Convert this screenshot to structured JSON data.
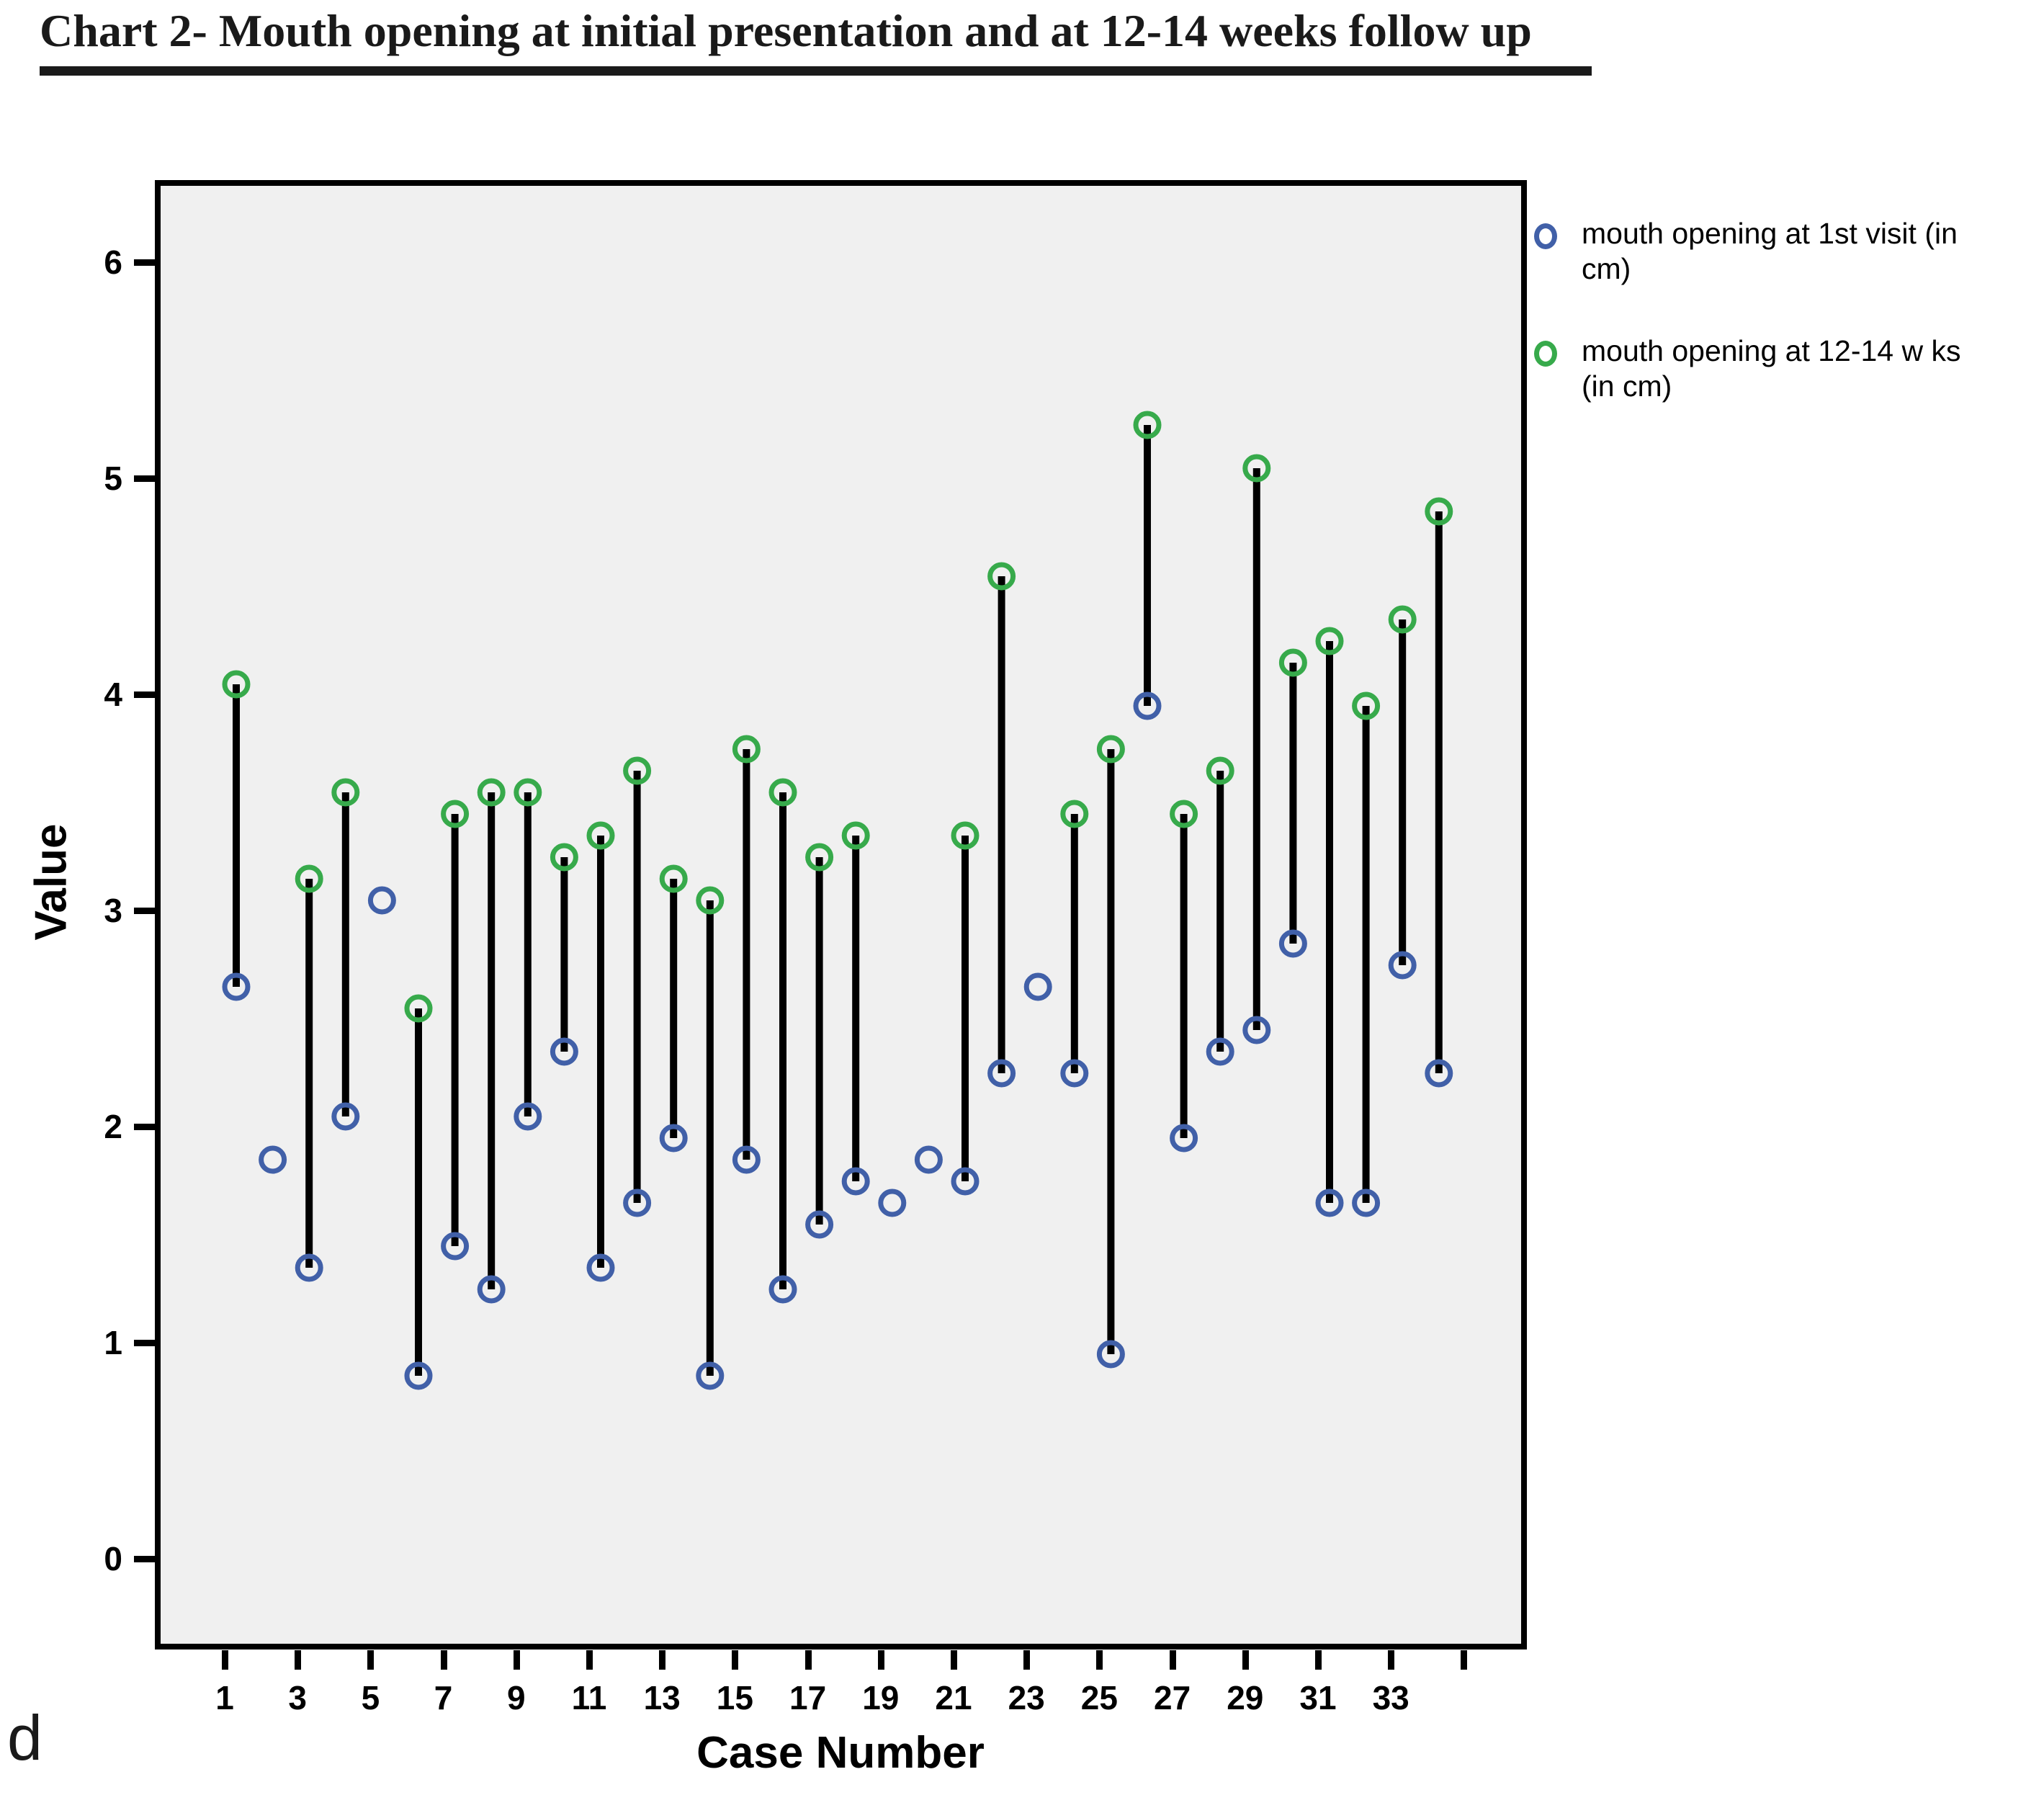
{
  "title": "Chart 2- Mouth opening at initial presentation and at 12-14 weeks follow up",
  "footnote": "d",
  "axes": {
    "y_label": "Value",
    "x_label": "Case Number",
    "y_ticks": [
      "0",
      "1",
      "2",
      "3",
      "4",
      "5",
      "6"
    ],
    "x_tick_labels": [
      "1",
      "3",
      "5",
      "7",
      "9",
      "11",
      "13",
      "15",
      "17",
      "19",
      "21",
      "23",
      "25",
      "27",
      "29",
      "31",
      "33"
    ],
    "x_tick_cases": [
      1,
      3,
      5,
      7,
      9,
      11,
      13,
      15,
      17,
      19,
      21,
      23,
      25,
      27,
      29,
      31,
      33
    ],
    "extra_unlabeled_tick_case": 35
  },
  "legend": {
    "items": [
      {
        "series": "first_visit",
        "color": "#4160A8",
        "lines": [
          "mouth opening at 1st visit (in",
          "cm)"
        ]
      },
      {
        "series": "followup",
        "color": "#37AA4B",
        "lines": [
          "mouth opening at 12-14 w ks",
          "(in cm)"
        ]
      }
    ]
  },
  "colors": {
    "first_visit": "#4160A8",
    "followup": "#37AA4B",
    "plot_bg": "#F0F0F0",
    "connector": "#000000"
  },
  "chart_data": {
    "type": "scatter",
    "subtype": "drop-line-pairs",
    "title": "Chart 2- Mouth opening at initial presentation and at 12-14 weeks follow up",
    "xlabel": "Case Number",
    "ylabel": "Value",
    "x": [
      1,
      2,
      3,
      4,
      5,
      6,
      7,
      8,
      9,
      10,
      11,
      12,
      13,
      14,
      15,
      16,
      17,
      18,
      19,
      20,
      21,
      22,
      23,
      24,
      25,
      26,
      27,
      28,
      29,
      30,
      31,
      32,
      33,
      34
    ],
    "series": [
      {
        "name": "mouth opening at 1st visit (in cm)",
        "marker": "open-circle",
        "color": "#4160A8",
        "values": [
          2.7,
          1.9,
          1.4,
          2.1,
          3.1,
          0.9,
          1.5,
          1.3,
          2.1,
          2.4,
          1.4,
          1.7,
          2.0,
          0.9,
          1.9,
          1.3,
          1.6,
          1.8,
          1.7,
          1.9,
          1.8,
          2.3,
          2.7,
          2.3,
          1.0,
          4.0,
          2.0,
          2.4,
          2.5,
          2.9,
          1.7,
          1.7,
          2.8,
          2.3
        ]
      },
      {
        "name": "mouth opening at 12-14 w ks (in cm)",
        "marker": "open-circle",
        "color": "#37AA4B",
        "values": [
          4.1,
          null,
          3.2,
          3.6,
          null,
          2.6,
          3.5,
          3.6,
          3.6,
          3.3,
          3.4,
          3.7,
          3.2,
          3.1,
          3.8,
          3.6,
          3.3,
          3.4,
          null,
          null,
          3.4,
          4.6,
          null,
          3.5,
          3.8,
          5.3,
          3.5,
          3.7,
          5.1,
          4.2,
          4.3,
          4.0,
          4.4,
          4.9
        ]
      }
    ],
    "connector_lines": "between paired points of the two series (absent where follow-up value is null)",
    "y_ticks": [
      0,
      1,
      2,
      3,
      4,
      5,
      6
    ],
    "ylim": [
      -0.37,
      6.43
    ],
    "x_ticks_labeled": [
      1,
      3,
      5,
      7,
      9,
      11,
      13,
      15,
      17,
      19,
      21,
      23,
      25,
      27,
      29,
      31,
      33
    ],
    "grid": false,
    "legend_position": "outside-top-right"
  }
}
